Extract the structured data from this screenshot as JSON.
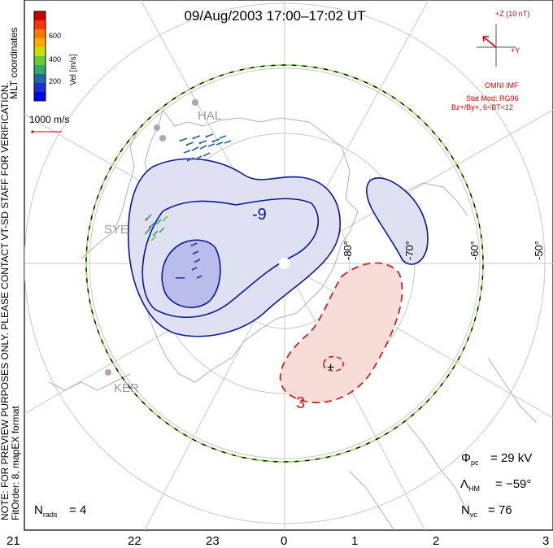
{
  "title": "09/Aug/2003 17:00–17:02 UT",
  "colorbar": {
    "label": "Vel [m/s]",
    "ticks": [
      "600",
      "400",
      "200"
    ],
    "colors": [
      "#cc0000",
      "#ff3300",
      "#ff7700",
      "#ffaa00",
      "#c8e000",
      "#66cc33",
      "#33aa66",
      "#2266aa",
      "#1a2fcc",
      "#0000ee"
    ]
  },
  "coordinates_label": "MLT coordinates",
  "reference_vector": "1000 m/s",
  "note": "NOTE: FOR PREVIEW PURPOSES ONLY. PLEASE CONTACT VT-SD STAFF FOR VERIFICATION.",
  "fit_order": "FitOrder: 8, mapEX format",
  "imf": {
    "axis_z": "+Z (10 nT)",
    "axis_y": "+Y",
    "source": "OMNI IMF",
    "stat_mod": "Stat Mod: RG96",
    "condition": "Bz+/By+, 6<BT<12"
  },
  "stations": [
    "HAL",
    "SYE",
    "KER"
  ],
  "latitude_labels": [
    "-80°",
    "-70°",
    "-60°",
    "-50°"
  ],
  "mlt_labels": [
    "21",
    "22",
    "23",
    "0",
    "1",
    "2",
    "3"
  ],
  "contours": {
    "negative_label": "-9",
    "min_marker": "–",
    "positive_label": "3",
    "max_marker": "+"
  },
  "stats": {
    "phi_pc": "29 kV",
    "lambda_hm": "−59°",
    "n_vc": "76",
    "n_rads": "4"
  },
  "colors": {
    "negative_fill": "#dfe1f2",
    "negative_fill_inner": "#babdeb",
    "negative_line": "#0a18a0",
    "positive_fill": "#f7dcd8",
    "positive_line": "#d62020",
    "hm_boundary_green": "#88dd44"
  }
}
